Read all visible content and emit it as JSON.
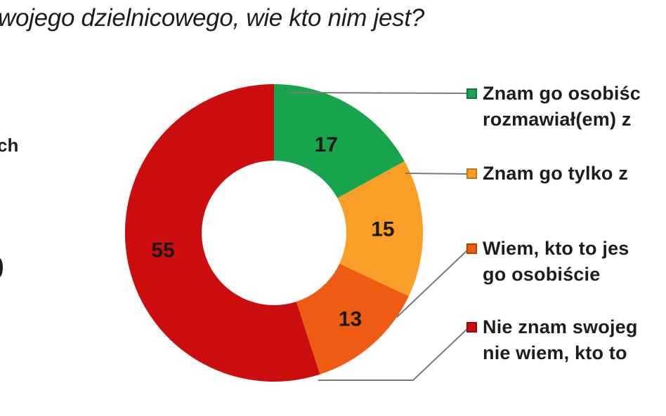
{
  "title": "wojego dzielnicowego, wie kto nim jest?",
  "left_edge_fragments": {
    "upper": "ch"
  },
  "chart_data": {
    "type": "pie",
    "donut": true,
    "title": "wojego dzielnicowego, wie kto nim jest?",
    "categories": [
      "Znam go osobiśc rozmawiał(em) z",
      "Znam go tylko z",
      "Wiem, kto to jes go osobiście",
      "Nie znam swojeg nie wiem, kto to"
    ],
    "values": [
      17,
      15,
      13,
      55
    ],
    "colors": [
      "#17A44D",
      "#F99E26",
      "#EE5B12",
      "#CC0D0D"
    ],
    "label_color": "#1a1a1a",
    "legend_position": "right",
    "start_angle_deg": 0,
    "direction": "clockwise"
  },
  "legend": {
    "items": [
      {
        "line1": "Znam go osobiśc",
        "line2": "rozmawiał(em) z",
        "color": "#17A44D",
        "border": "#0E7A37"
      },
      {
        "line1": "Znam go tylko z",
        "line2": "",
        "color": "#F99E26",
        "border": "#C27713"
      },
      {
        "line1": "Wiem, kto to jes",
        "line2": "go osobiście",
        "color": "#EE5B12",
        "border": "#B04208"
      },
      {
        "line1": "Nie znam swojeg",
        "line2": "nie wiem, kto to",
        "color": "#CC0D0D",
        "border": "#8F0A0A"
      }
    ]
  }
}
